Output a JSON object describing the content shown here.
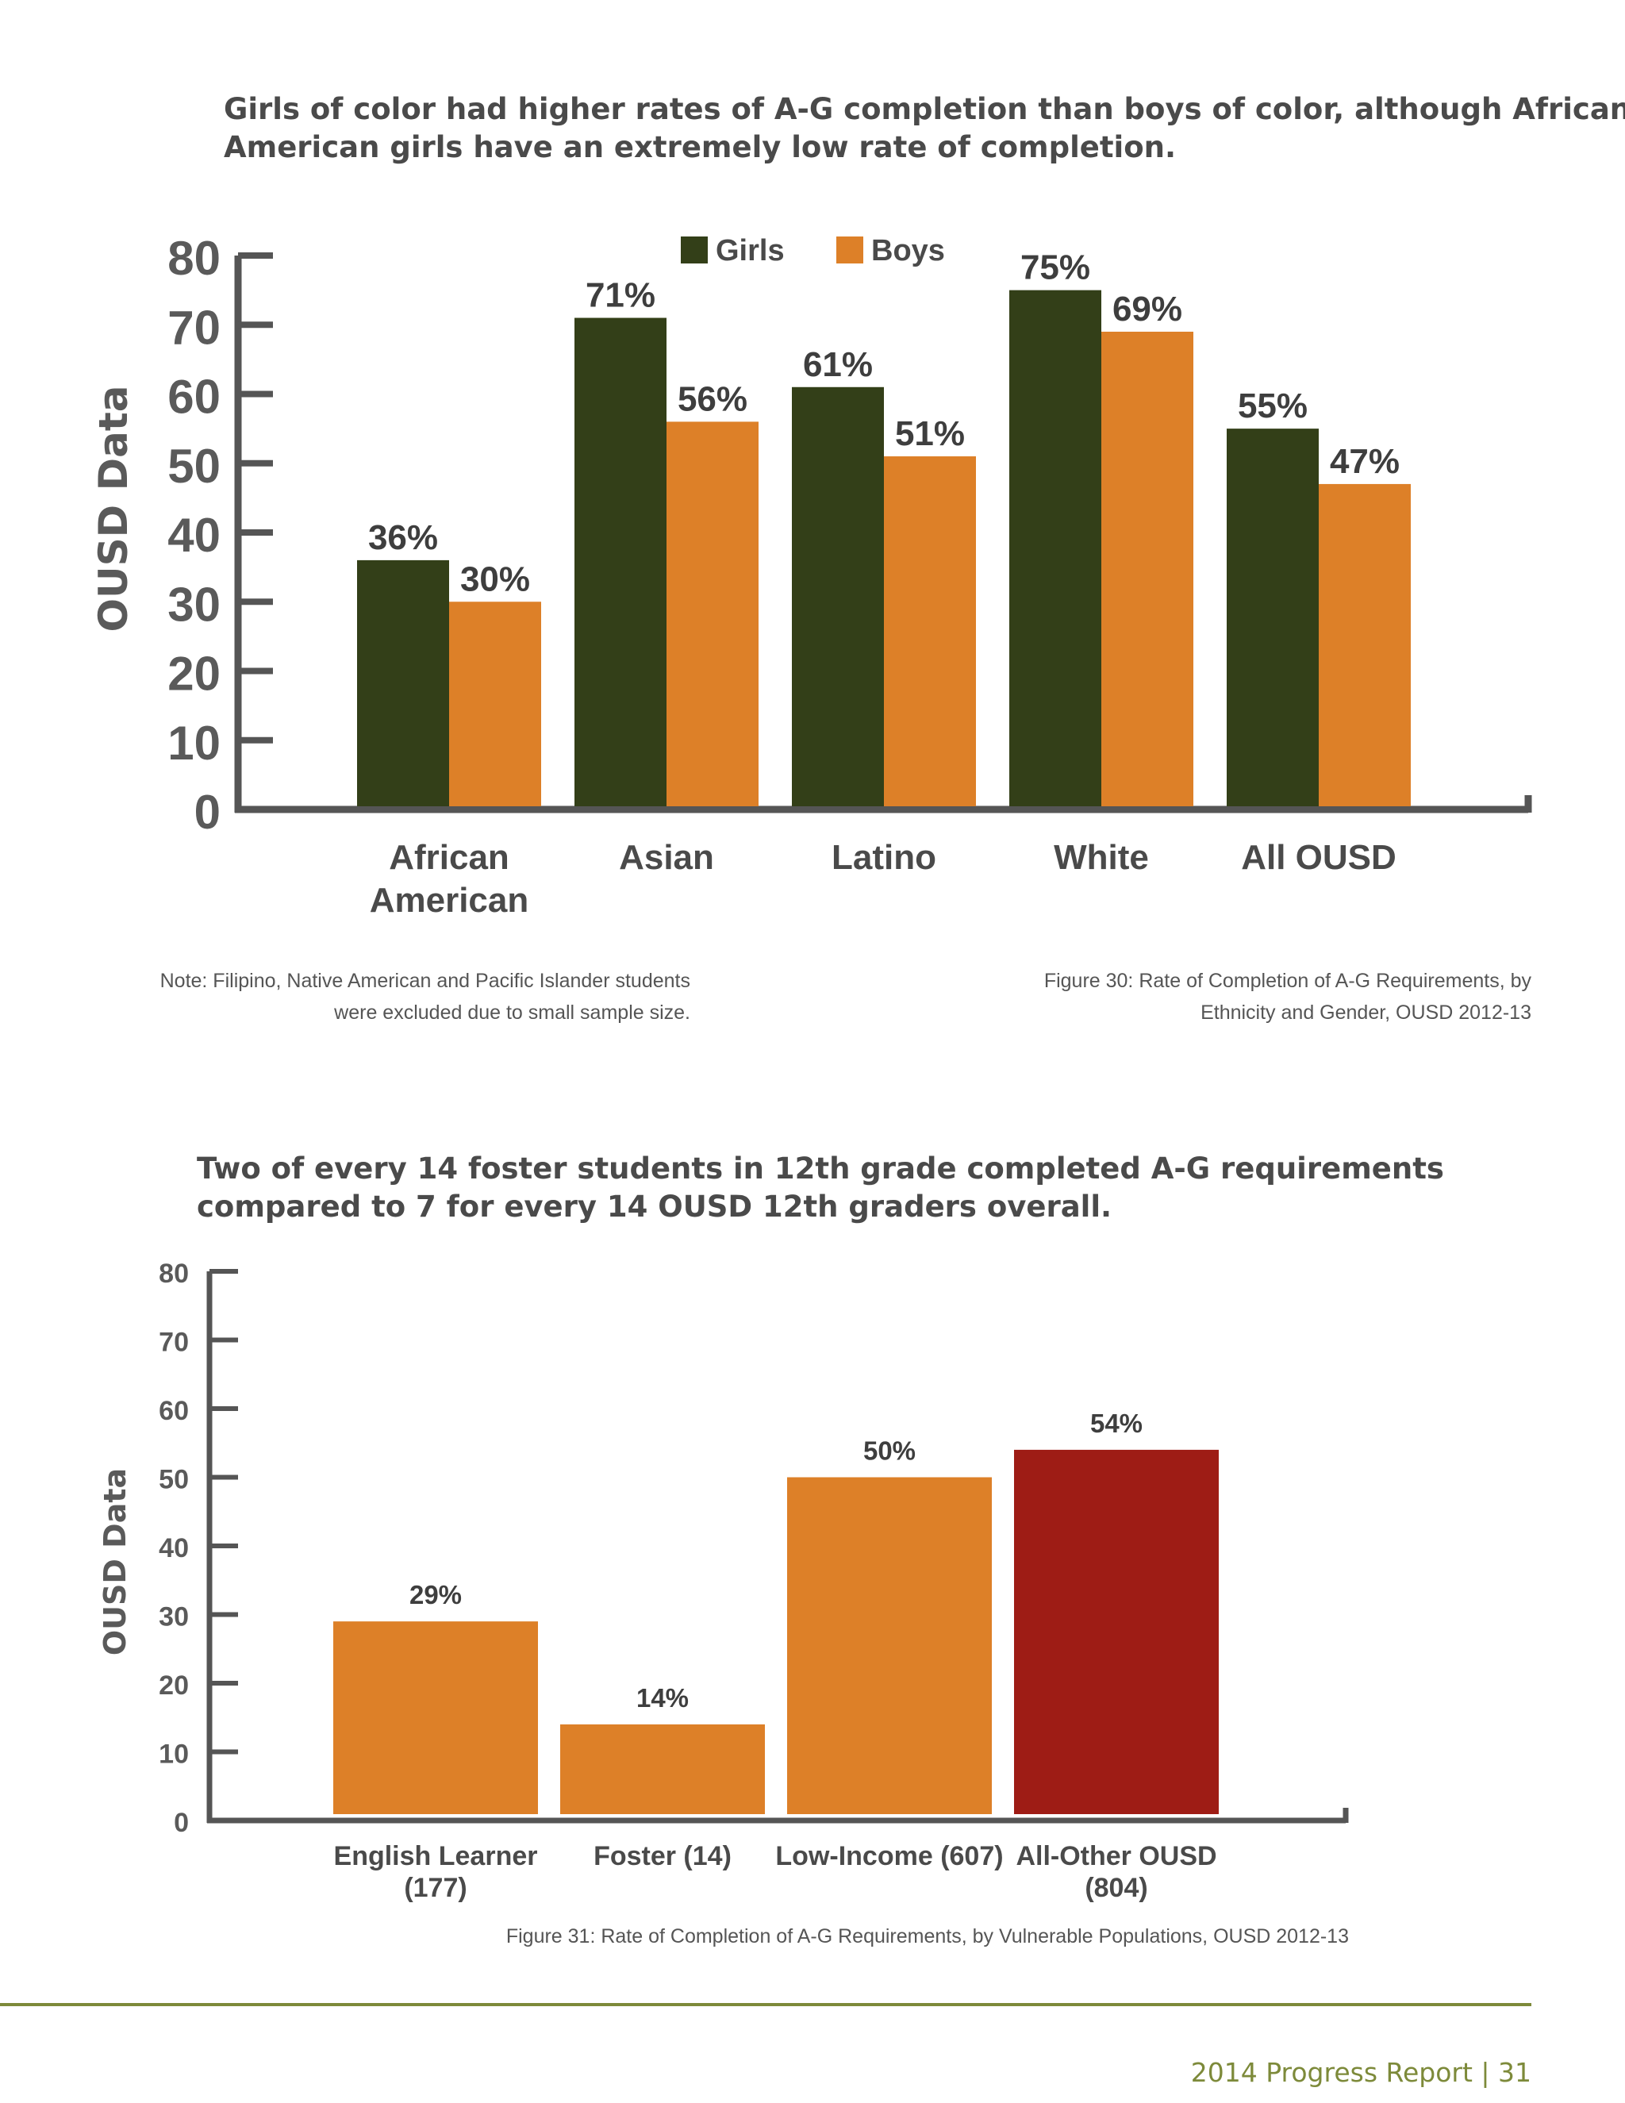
{
  "figure30": {
    "headline": [
      "Girls of color had higher rates of A-G completion than boys of color, although African",
      "American girls have an extremely low rate of completion."
    ],
    "note": [
      "Note: Filipino, Native American and Pacific Islander students",
      "were excluded due to small sample size."
    ],
    "caption": [
      "Figure 30: Rate of Completion of A-G Requirements, by",
      "Ethnicity and Gender, OUSD 2012-13"
    ]
  },
  "figure31": {
    "headline": [
      "Two of every 14 foster students in 12th grade completed A-G requirements",
      "compared to 7 for every 14 OUSD 12th graders overall."
    ],
    "caption": "Figure 31: Rate of Completion of A-G Requirements, by Vulnerable Populations, OUSD 2012-13"
  },
  "footer": "2014 Progress Report | 31",
  "colors": {
    "girls": "#333f18",
    "boys": "#dd8028",
    "highlight": "#9e1c15",
    "footer": "#7d8a3a"
  },
  "chart_data": [
    {
      "type": "bar",
      "ylabel": "OUSD Data",
      "ylim": [
        0,
        80
      ],
      "yticks": [
        0,
        10,
        20,
        30,
        40,
        50,
        60,
        70,
        80
      ],
      "categories": [
        [
          "African",
          "American"
        ],
        [
          "Asian"
        ],
        [
          "Latino"
        ],
        [
          "White"
        ],
        [
          "All OUSD"
        ]
      ],
      "legend": "top-center",
      "series": [
        {
          "name": "Girls",
          "color": "#333f18",
          "values": [
            36,
            71,
            61,
            75,
            55
          ],
          "labels": [
            "36%",
            "71%",
            "61%",
            "75%",
            "55%"
          ]
        },
        {
          "name": "Boys",
          "color": "#dd8028",
          "values": [
            30,
            56,
            51,
            69,
            47
          ],
          "labels": [
            "30%",
            "56%",
            "51%",
            "69%",
            "47%"
          ]
        }
      ]
    },
    {
      "type": "bar",
      "ylabel": "OUSD Data",
      "ylim": [
        0,
        80
      ],
      "yticks": [
        0,
        10,
        20,
        30,
        40,
        50,
        60,
        70,
        80
      ],
      "categories": [
        [
          "English Learner",
          "(177)"
        ],
        [
          "Foster (14)"
        ],
        [
          "Low-Income (607)"
        ],
        [
          "All-Other OUSD",
          "(804)"
        ]
      ],
      "values": [
        29,
        14,
        50,
        54
      ],
      "labels": [
        "29%",
        "14%",
        "50%",
        "54%"
      ],
      "colors": [
        "#dd8028",
        "#dd8028",
        "#dd8028",
        "#9e1c15"
      ]
    }
  ]
}
